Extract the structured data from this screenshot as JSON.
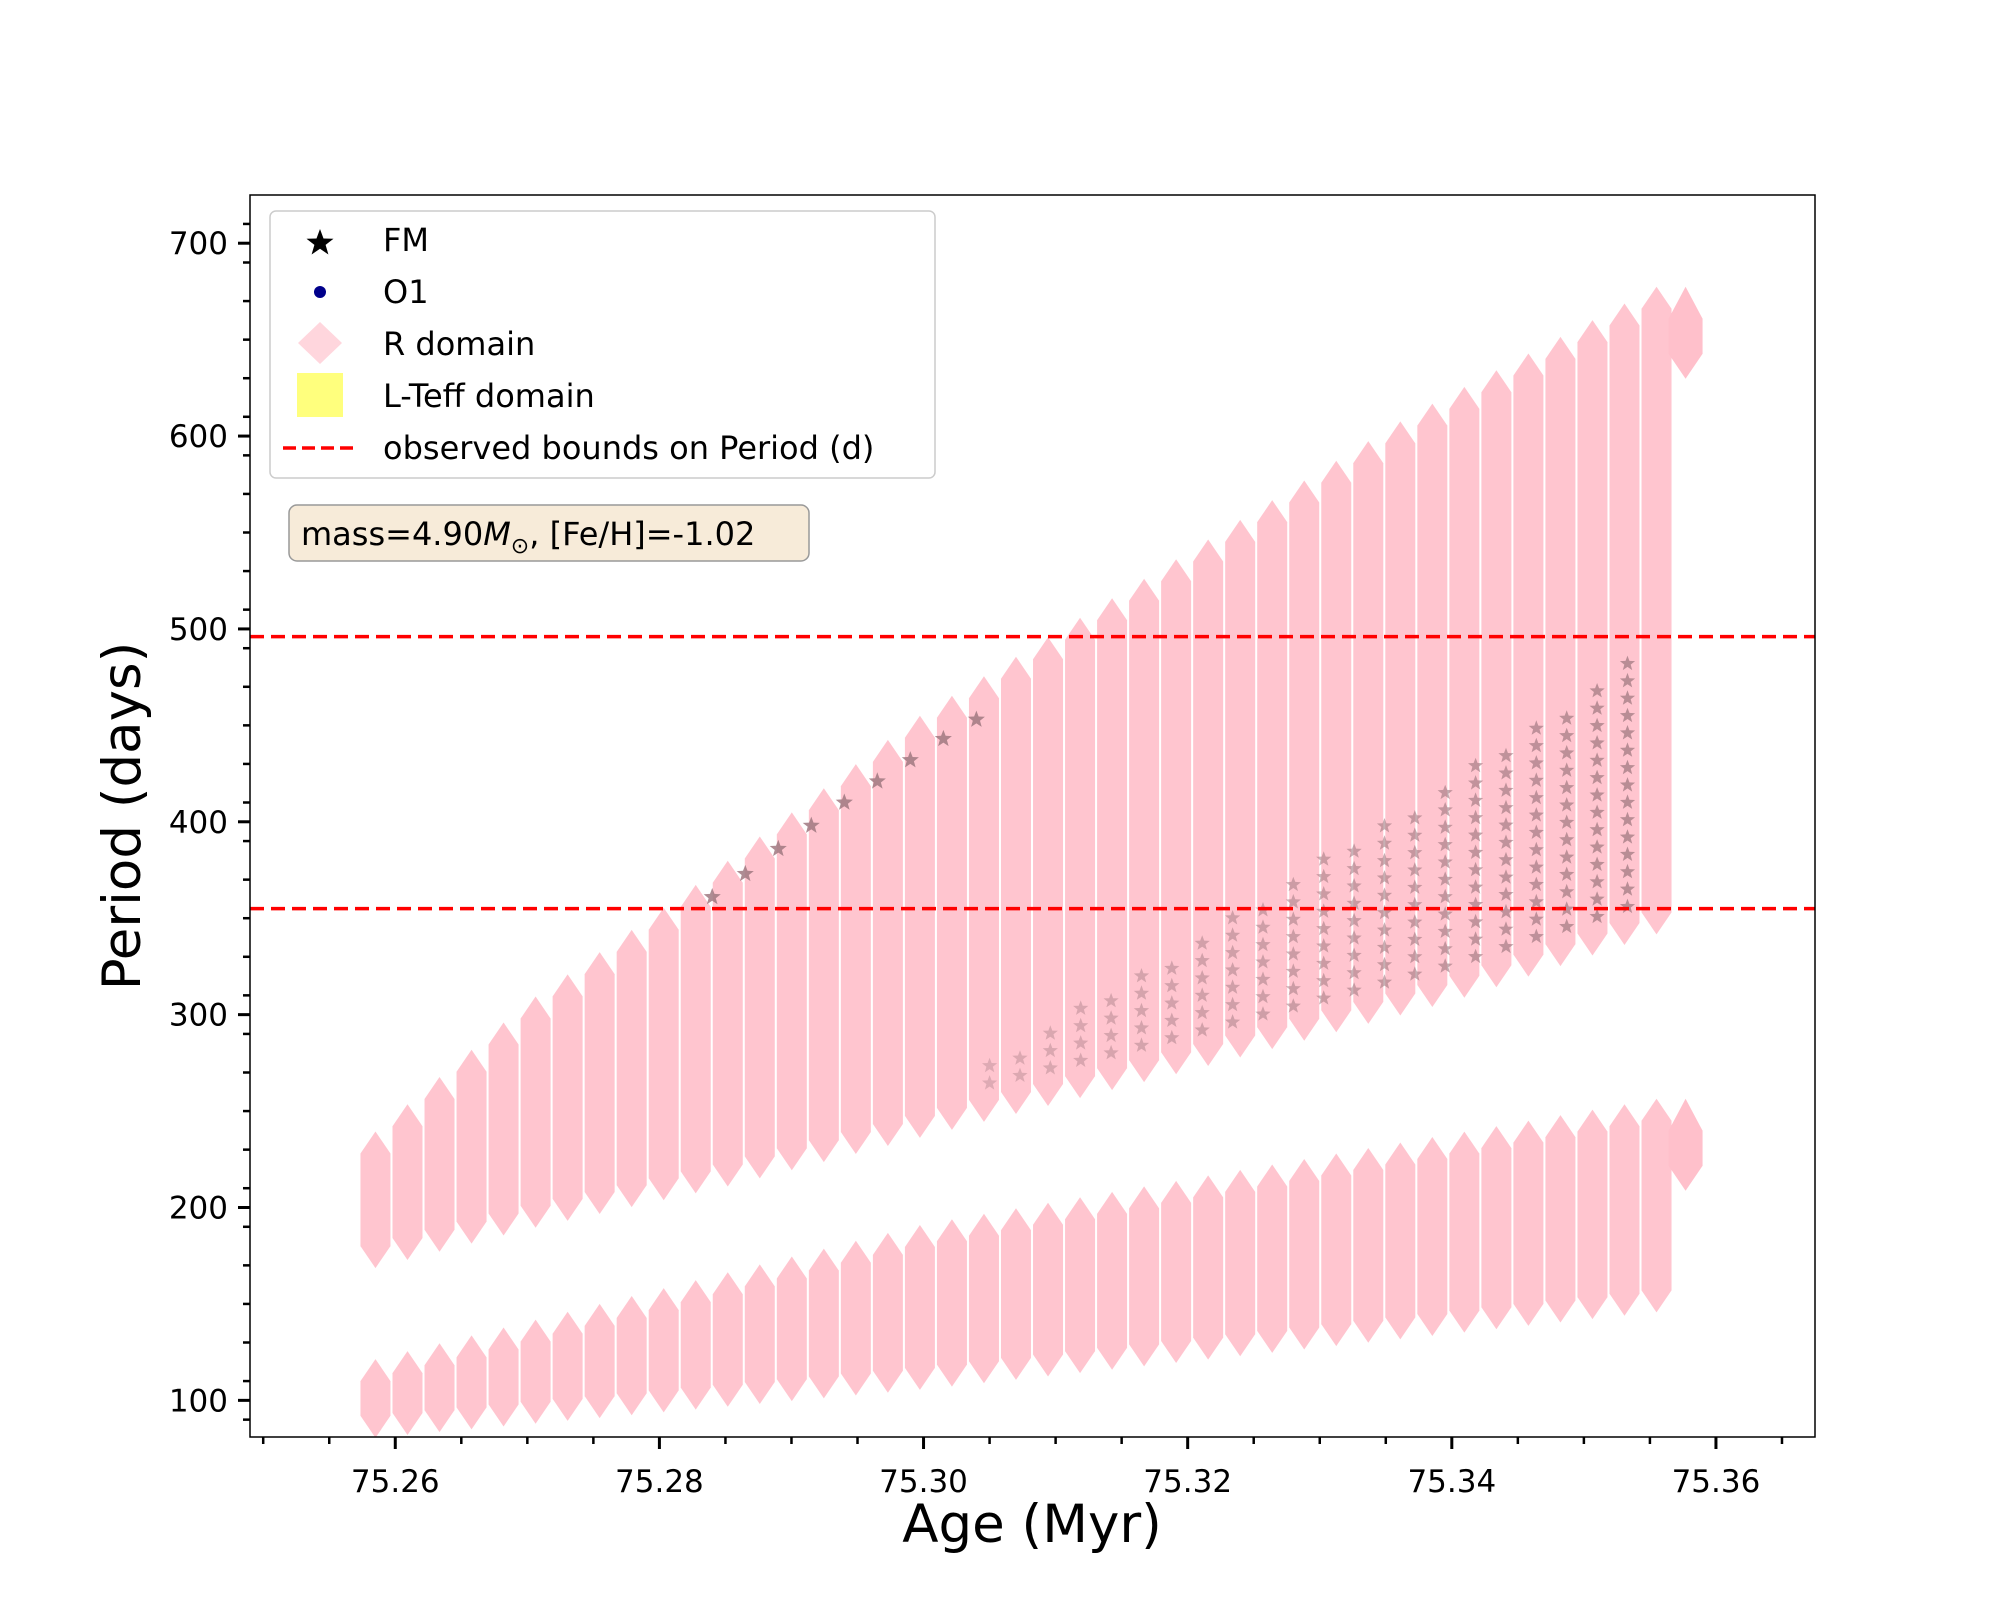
{
  "chart_data": {
    "type": "scatter",
    "title": "",
    "xlabel": "Age (Myr)",
    "ylabel": "Period (days)",
    "xlim": [
      75.249,
      75.3675
    ],
    "ylim": [
      81,
      725
    ],
    "xticks": [
      75.26,
      75.28,
      75.3,
      75.32,
      75.34,
      75.36
    ],
    "xtick_labels": [
      "75.26",
      "75.28",
      "75.30",
      "75.32",
      "75.34",
      "75.36"
    ],
    "yticks": [
      100,
      200,
      300,
      400,
      500,
      600,
      700
    ],
    "ytick_labels": [
      "100",
      "200",
      "300",
      "400",
      "500",
      "600",
      "700"
    ],
    "grid": false,
    "legend_position": "top-left",
    "annotation": {
      "prefix": "mass=4.90",
      "symbol": "M",
      "subscript": "⊙",
      "suffix": ", [Fe/H]=-1.02"
    },
    "colors": {
      "fm": "#000000",
      "o1": "#00008b",
      "r_domain": "#ffc0cb",
      "lteff_domain": "#ffff66",
      "bounds": "#ff0000",
      "fm_overlap": "#a07880",
      "annotation_bg": "#f7ebd9"
    },
    "series": [
      {
        "name": "FM",
        "marker": "star",
        "description_bands": [
          {
            "x": [
              75.2585,
              75.3555
            ],
            "y_low": [
              180,
              353
            ],
            "y_high": [
              228,
              666
            ]
          }
        ],
        "upper_edge": {
          "x": [
            75.2585,
            75.27,
            75.282,
            75.3,
            75.318,
            75.337,
            75.3555
          ],
          "y": [
            228,
            295,
            352,
            445,
            520,
            600,
            666
          ]
        },
        "lower_edge": {
          "x": [
            75.2585,
            75.27,
            75.285,
            75.3,
            75.32,
            75.34,
            75.3555
          ],
          "y": [
            180,
            200,
            222,
            248,
            282,
            318,
            353
          ]
        }
      },
      {
        "name": "O1",
        "marker": "circle",
        "upper_edge": {
          "x": [
            75.2585,
            75.3,
            75.3555
          ],
          "y": [
            110,
            180,
            245
          ]
        },
        "lower_edge": {
          "x": [
            75.2585,
            75.3,
            75.3555
          ],
          "y": [
            92,
            117,
            157
          ]
        }
      },
      {
        "name": "R domain",
        "marker": "diamond"
      },
      {
        "name": "L-Teff domain",
        "marker": "square"
      }
    ],
    "hlines": [
      {
        "name": "observed bounds on Period (d)",
        "y": 355,
        "style": "dashed"
      },
      {
        "name": "observed bounds on Period (d)",
        "y": 496,
        "style": "dashed"
      }
    ],
    "fm_star_ridge": {
      "x": [
        75.284,
        75.2865,
        75.289,
        75.2915,
        75.294,
        75.2965,
        75.299,
        75.3015,
        75.304
      ],
      "y": [
        361,
        373,
        386,
        398,
        410,
        421,
        432,
        443,
        453
      ]
    },
    "legend": [
      {
        "label": "FM",
        "marker": "star"
      },
      {
        "label": "O1",
        "marker": "circle"
      },
      {
        "label": "R domain",
        "marker": "diamond"
      },
      {
        "label": "L-Teff domain",
        "marker": "square"
      },
      {
        "label": "observed bounds on Period (d)",
        "marker": "dashed-line"
      }
    ]
  }
}
